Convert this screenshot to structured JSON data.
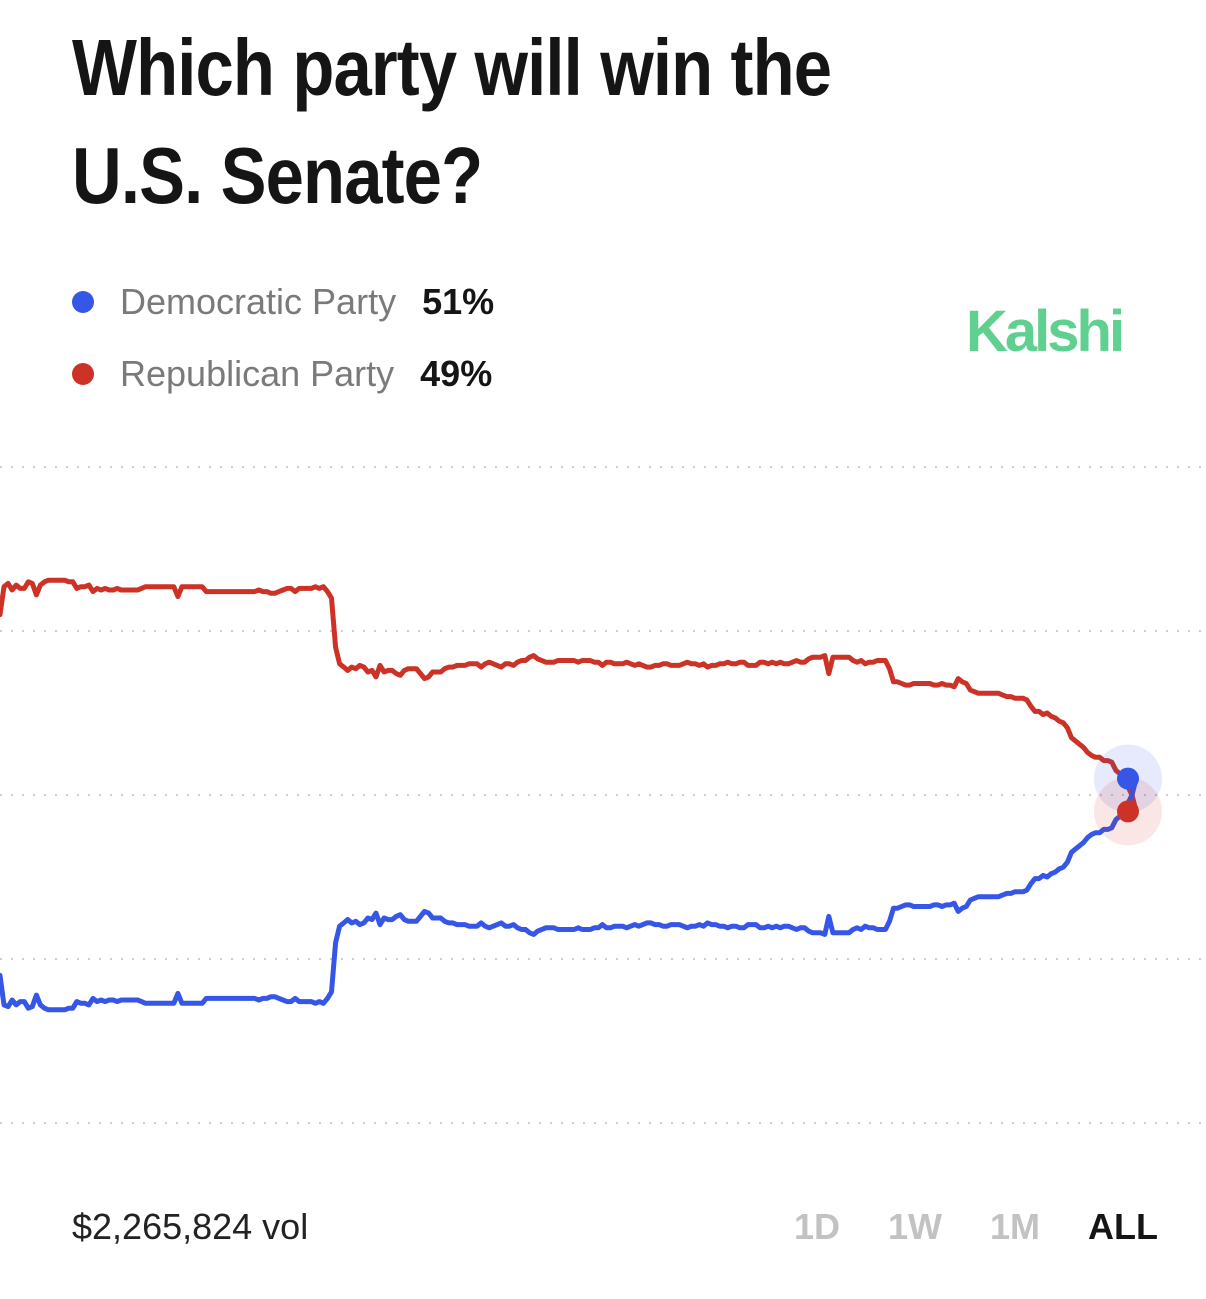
{
  "header": {
    "title": "Which party will win the U.S. Senate?"
  },
  "brand": {
    "name": "Kalshi",
    "color": "#5fd08f"
  },
  "chart_data": {
    "type": "line",
    "x_points": 280,
    "ylim": [
      30,
      70
    ],
    "grid": true,
    "grid_values": [
      30,
      40,
      50,
      60,
      70
    ],
    "legend_position": "top-left",
    "series": [
      {
        "name": "Democratic Party",
        "value_label": "51%",
        "color": "#3556e6",
        "values": [
          39.0,
          37.2,
          37.1,
          37.5,
          37.2,
          37.4,
          37.4,
          37.0,
          37.1,
          37.8,
          37.2,
          37.0,
          36.9,
          36.9,
          36.9,
          36.9,
          36.9,
          37.0,
          37.0,
          37.4,
          37.3,
          37.3,
          37.2,
          37.6,
          37.4,
          37.5,
          37.4,
          37.5,
          37.5,
          37.4,
          37.5,
          37.5,
          37.5,
          37.5,
          37.5,
          37.4,
          37.3,
          37.3,
          37.3,
          37.3,
          37.3,
          37.3,
          37.3,
          37.3,
          37.9,
          37.3,
          37.3,
          37.3,
          37.3,
          37.3,
          37.3,
          37.6,
          37.6,
          37.6,
          37.6,
          37.6,
          37.6,
          37.6,
          37.6,
          37.6,
          37.6,
          37.6,
          37.6,
          37.6,
          37.5,
          37.6,
          37.6,
          37.7,
          37.7,
          37.6,
          37.5,
          37.4,
          37.4,
          37.6,
          37.4,
          37.4,
          37.4,
          37.4,
          37.3,
          37.4,
          37.3,
          37.6,
          38.0,
          41.0,
          42.0,
          42.2,
          42.4,
          42.2,
          42.3,
          42.1,
          42.2,
          42.5,
          42.4,
          42.8,
          42.1,
          42.5,
          42.4,
          42.4,
          42.6,
          42.7,
          42.4,
          42.3,
          42.3,
          42.3,
          42.6,
          42.9,
          42.8,
          42.5,
          42.5,
          42.5,
          42.3,
          42.2,
          42.2,
          42.1,
          42.1,
          42.1,
          42.0,
          42.0,
          42.0,
          42.2,
          42.0,
          41.9,
          42.0,
          42.1,
          42.2,
          42.0,
          42.0,
          42.1,
          41.9,
          41.8,
          41.8,
          41.6,
          41.5,
          41.7,
          41.8,
          41.9,
          41.9,
          41.9,
          41.8,
          41.8,
          41.8,
          41.8,
          41.8,
          41.9,
          41.8,
          41.8,
          41.8,
          41.9,
          41.9,
          42.1,
          41.9,
          41.9,
          42.0,
          42.0,
          42.0,
          41.9,
          42.0,
          42.1,
          42.0,
          42.1,
          42.2,
          42.2,
          42.1,
          42.1,
          42.0,
          42.0,
          42.1,
          42.1,
          42.1,
          42.0,
          41.9,
          42.0,
          42.0,
          42.1,
          42.0,
          42.2,
          42.1,
          42.1,
          42.0,
          42.0,
          41.9,
          42.0,
          42.0,
          41.9,
          41.9,
          42.1,
          42.1,
          42.1,
          41.9,
          41.9,
          42.0,
          41.9,
          42.0,
          41.9,
          42.0,
          42.0,
          41.9,
          41.8,
          41.9,
          41.9,
          41.7,
          41.6,
          41.6,
          41.6,
          41.5,
          42.6,
          41.6,
          41.6,
          41.6,
          41.6,
          41.6,
          41.8,
          41.9,
          41.8,
          42.0,
          41.9,
          41.9,
          41.8,
          41.8,
          41.8,
          42.3,
          43.1,
          43.1,
          43.2,
          43.3,
          43.3,
          43.2,
          43.2,
          43.2,
          43.2,
          43.2,
          43.3,
          43.3,
          43.2,
          43.3,
          43.3,
          43.4,
          42.9,
          43.1,
          43.2,
          43.6,
          43.7,
          43.8,
          43.8,
          43.8,
          43.8,
          43.8,
          43.8,
          43.9,
          44.0,
          44.0,
          44.1,
          44.1,
          44.1,
          44.2,
          44.6,
          44.9,
          44.9,
          45.1,
          45.0,
          45.2,
          45.3,
          45.5,
          45.6,
          45.9,
          46.5,
          46.7,
          46.9,
          47.1,
          47.4,
          47.6,
          47.7,
          47.7,
          47.9,
          47.9,
          48.0,
          48.5,
          48.7,
          49.1,
          49.5,
          50.0,
          51.0
        ]
      },
      {
        "name": "Republican Party",
        "value_label": "49%",
        "color": "#cc3326",
        "values": [
          61.0,
          62.7,
          62.9,
          62.5,
          62.8,
          62.6,
          62.6,
          63.0,
          62.9,
          62.2,
          62.8,
          63.0,
          63.1,
          63.1,
          63.1,
          63.1,
          63.1,
          63.0,
          63.0,
          62.6,
          62.7,
          62.7,
          62.8,
          62.4,
          62.6,
          62.5,
          62.6,
          62.5,
          62.5,
          62.6,
          62.5,
          62.5,
          62.5,
          62.5,
          62.5,
          62.6,
          62.7,
          62.7,
          62.7,
          62.7,
          62.7,
          62.7,
          62.7,
          62.7,
          62.1,
          62.7,
          62.7,
          62.7,
          62.7,
          62.7,
          62.7,
          62.4,
          62.4,
          62.4,
          62.4,
          62.4,
          62.4,
          62.4,
          62.4,
          62.4,
          62.4,
          62.4,
          62.4,
          62.4,
          62.5,
          62.4,
          62.4,
          62.3,
          62.3,
          62.4,
          62.5,
          62.6,
          62.6,
          62.4,
          62.6,
          62.6,
          62.6,
          62.6,
          62.7,
          62.6,
          62.7,
          62.4,
          62.0,
          59.0,
          58.0,
          57.8,
          57.6,
          57.8,
          57.7,
          57.9,
          57.8,
          57.5,
          57.6,
          57.2,
          57.9,
          57.5,
          57.6,
          57.6,
          57.4,
          57.3,
          57.6,
          57.7,
          57.7,
          57.7,
          57.4,
          57.1,
          57.2,
          57.5,
          57.5,
          57.5,
          57.7,
          57.8,
          57.8,
          57.9,
          57.9,
          57.9,
          58.0,
          58.0,
          58.0,
          57.8,
          58.0,
          58.1,
          58.0,
          57.9,
          57.8,
          58.0,
          58.0,
          57.9,
          58.1,
          58.2,
          58.2,
          58.4,
          58.5,
          58.3,
          58.2,
          58.1,
          58.1,
          58.1,
          58.2,
          58.2,
          58.2,
          58.2,
          58.2,
          58.1,
          58.2,
          58.2,
          58.2,
          58.1,
          58.1,
          57.9,
          58.1,
          58.1,
          58.0,
          58.0,
          58.0,
          58.1,
          58.0,
          57.9,
          58.0,
          57.9,
          57.8,
          57.8,
          57.9,
          57.9,
          58.0,
          58.0,
          57.9,
          57.9,
          57.9,
          58.0,
          58.1,
          58.0,
          58.0,
          57.9,
          58.0,
          57.8,
          57.9,
          57.9,
          58.0,
          58.0,
          58.1,
          58.0,
          58.0,
          58.1,
          58.1,
          57.9,
          57.9,
          57.9,
          58.1,
          58.1,
          58.0,
          58.1,
          58.0,
          58.1,
          58.0,
          58.0,
          58.1,
          58.2,
          58.1,
          58.1,
          58.3,
          58.4,
          58.4,
          58.4,
          58.5,
          57.4,
          58.4,
          58.4,
          58.4,
          58.4,
          58.4,
          58.2,
          58.1,
          58.2,
          58.0,
          58.1,
          58.1,
          58.2,
          58.2,
          58.2,
          57.7,
          56.9,
          56.9,
          56.8,
          56.7,
          56.7,
          56.8,
          56.8,
          56.8,
          56.8,
          56.8,
          56.7,
          56.7,
          56.8,
          56.7,
          56.7,
          56.6,
          57.1,
          56.9,
          56.8,
          56.4,
          56.3,
          56.2,
          56.2,
          56.2,
          56.2,
          56.2,
          56.2,
          56.1,
          56.0,
          56.0,
          55.9,
          55.9,
          55.9,
          55.8,
          55.4,
          55.1,
          55.1,
          54.9,
          55.0,
          54.8,
          54.7,
          54.5,
          54.4,
          54.1,
          53.5,
          53.3,
          53.1,
          52.9,
          52.6,
          52.4,
          52.3,
          52.3,
          52.1,
          52.1,
          52.0,
          51.5,
          51.3,
          50.9,
          50.5,
          50.0,
          49.0
        ]
      }
    ]
  },
  "footer": {
    "volume": "$2,265,824 vol",
    "ranges": [
      "1D",
      "1W",
      "1M",
      "ALL"
    ],
    "active_range": "ALL"
  }
}
